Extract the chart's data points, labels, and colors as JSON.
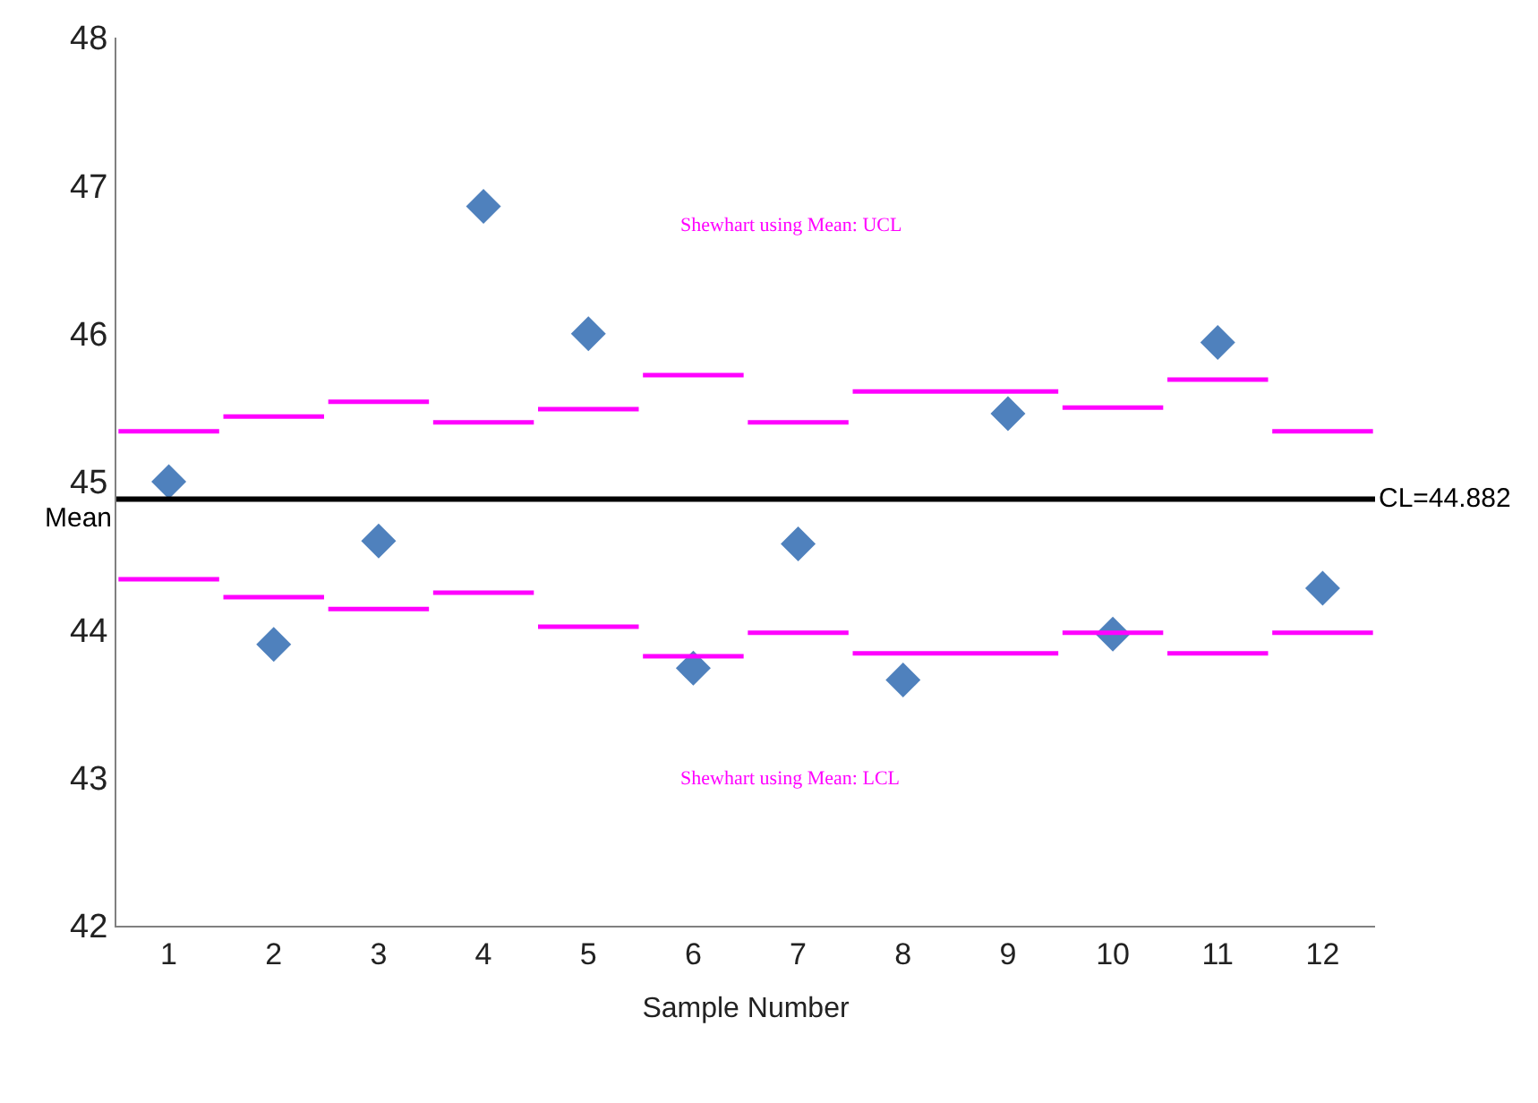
{
  "chart_data": {
    "type": "scatter",
    "xlabel": "Sample Number",
    "x": [
      1,
      2,
      3,
      4,
      5,
      6,
      7,
      8,
      9,
      10,
      11,
      12
    ],
    "xlim": [
      0.5,
      12.5
    ],
    "xticks": [
      1,
      2,
      3,
      4,
      5,
      6,
      7,
      8,
      9,
      10,
      11,
      12
    ],
    "ylim": [
      42,
      48
    ],
    "yticks": [
      42,
      43,
      44,
      45,
      46,
      47,
      48
    ],
    "marker": "diamond",
    "series": [
      {
        "color": "#4f81bd",
        "values": [
          45.0,
          43.9,
          44.6,
          46.86,
          46.0,
          43.74,
          44.58,
          43.66,
          45.46,
          43.97,
          45.94,
          44.28
        ]
      },
      {
        "type": "line",
        "color": "#ff00ff",
        "marker": "none",
        "x": [
          0.52,
          1.48,
          null,
          1.52,
          2.48,
          null,
          2.52,
          3.48,
          null,
          3.52,
          4.48,
          null,
          4.52,
          5.48,
          null,
          5.52,
          6.48,
          null,
          6.52,
          7.48,
          null,
          7.52,
          9.48,
          null,
          9.52,
          10.48,
          null,
          10.52,
          11.48,
          null,
          11.52,
          12.48
        ],
        "values": [
          45.34,
          45.34,
          null,
          45.44,
          45.44,
          null,
          45.54,
          45.54,
          null,
          45.4,
          45.4,
          null,
          45.49,
          45.49,
          null,
          45.72,
          45.72,
          null,
          45.4,
          45.4,
          null,
          45.61,
          45.61,
          null,
          45.5,
          45.5,
          null,
          45.69,
          45.69,
          null,
          45.34,
          45.34
        ]
      },
      {
        "type": "line",
        "color": "#ff00ff",
        "marker": "none",
        "x": [
          0.52,
          1.48,
          null,
          1.52,
          2.48,
          null,
          2.52,
          3.48,
          null,
          3.52,
          4.48,
          null,
          4.52,
          5.48,
          null,
          5.52,
          6.48,
          null,
          6.52,
          7.48,
          null,
          7.52,
          9.48,
          null,
          9.52,
          10.48,
          null,
          10.52,
          11.48,
          null,
          11.52,
          12.48
        ],
        "values": [
          44.34,
          44.34,
          null,
          44.22,
          44.22,
          null,
          44.14,
          44.14,
          null,
          44.25,
          44.25,
          null,
          44.02,
          44.02,
          null,
          43.82,
          43.82,
          null,
          43.98,
          43.98,
          null,
          43.84,
          43.84,
          null,
          43.98,
          43.98,
          null,
          43.84,
          43.84,
          null,
          43.98,
          43.98
        ]
      }
    ],
    "ref_lines": [
      {
        "axis": "y",
        "value": 44.882,
        "label": "CL=44.882",
        "color": "#000000"
      }
    ],
    "annotations": [
      "Mean",
      "Shewhart using Mean: UCL",
      "Shewhart using Mean: LCL"
    ]
  }
}
